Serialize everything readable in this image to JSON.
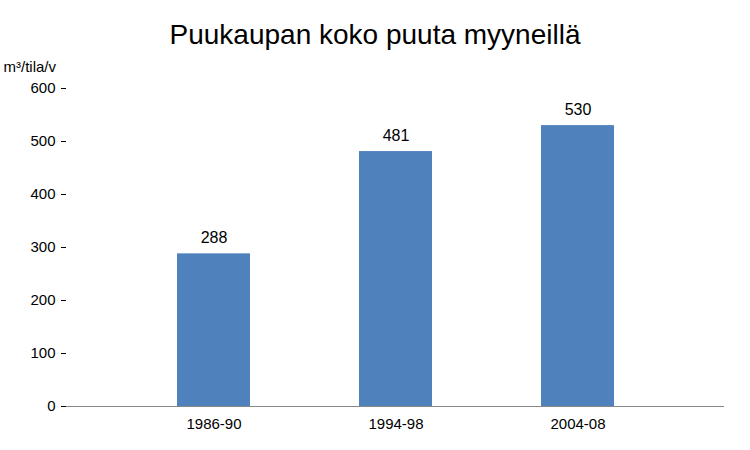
{
  "chart_data": {
    "type": "bar",
    "title": "Puukaupan koko puuta myyneillä",
    "y_label": "m³/tila/v",
    "categories": [
      "1986-90",
      "1994-98",
      "2004-08"
    ],
    "values": [
      288,
      481,
      530
    ],
    "color": "#4f81bd",
    "ylim": [
      0,
      600
    ],
    "yticks": [
      0,
      100,
      200,
      300,
      400,
      500,
      600
    ],
    "grid": false,
    "data_labels": true
  }
}
